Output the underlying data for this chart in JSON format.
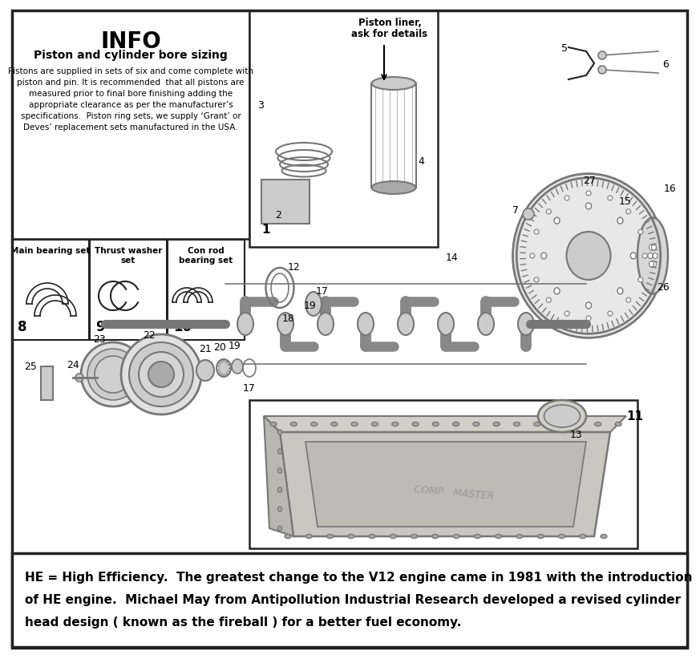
{
  "bg_color": "#ffffff",
  "border_color": "#1a1a1a",
  "main_title": "INFO",
  "subtitle": "Piston and cylinder bore sizing",
  "info_text_lines": [
    "Pistons are supplied in sets of six and come complete with",
    "piston and pin. It is recommended  that all pistons are",
    "measured prior to final bore finishing adding the",
    "appropriate clearance as per the manufacturer’s",
    "specifications.  Piston ring sets, we supply ‘Grant’ or",
    "Deves’ replacement sets manufactured in the USA."
  ],
  "piston_liner_label_line1": "Piston liner,",
  "piston_liner_label_line2": "ask for details",
  "bearing_label_0": "Main bearing set",
  "bearing_label_1": "Thrust washer\nset",
  "bearing_label_2": "Con rod\nbearing set",
  "bearing_num_0": "8",
  "bearing_num_1": "9",
  "bearing_num_2": "10",
  "footer_line1": "HE = High Efficiency.  The greatest change to the V12 engine came in 1981 with the introduction",
  "footer_line2": "of HE engine.  Michael May from Antipollution Industrial Research developed a revised cylinder",
  "footer_line3": "head design ( known as the fireball ) for a better fuel economy.",
  "line_color": "#222222",
  "light_gray": "#cccccc",
  "mid_gray": "#aaaaaa",
  "dark_gray": "#777777"
}
